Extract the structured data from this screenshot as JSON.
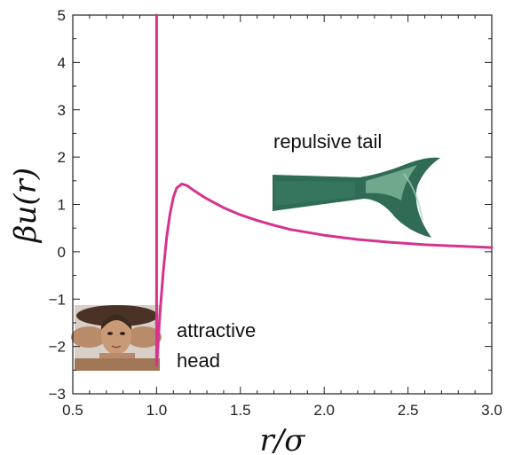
{
  "chart_data": {
    "type": "line",
    "xlabel": "r/σ",
    "ylabel": "βu(r)",
    "xlim": [
      0.5,
      3.0
    ],
    "ylim": [
      -3,
      5
    ],
    "x_ticks": [
      "0.5",
      "1.0",
      "1.5",
      "2.0",
      "2.5",
      "3.0"
    ],
    "y_ticks": [
      "−3",
      "−2",
      "−1",
      "0",
      "1",
      "2",
      "3",
      "4",
      "5"
    ],
    "grid": false,
    "series": [
      {
        "color": "#d6338f",
        "x": [
          1.0,
          1.0,
          1.02,
          1.04,
          1.06,
          1.08,
          1.1,
          1.12,
          1.15,
          1.18,
          1.2,
          1.25,
          1.3,
          1.4,
          1.5,
          1.6,
          1.7,
          1.8,
          2.0,
          2.2,
          2.4,
          2.6,
          2.8,
          3.0
        ],
        "y": [
          5.0,
          -2.4,
          -1.3,
          -0.4,
          0.3,
          0.8,
          1.15,
          1.35,
          1.43,
          1.4,
          1.35,
          1.23,
          1.12,
          0.93,
          0.78,
          0.66,
          0.56,
          0.47,
          0.35,
          0.26,
          0.2,
          0.15,
          0.12,
          0.09
        ]
      }
    ],
    "annotations": [
      {
        "text": "repulsive tail",
        "image": "mermaid-tail"
      },
      {
        "text": "attractive\nhead",
        "image": "mermaid-head"
      }
    ]
  },
  "annotation_text": {
    "repulsive": "repulsive tail",
    "attractive_line1": "attractive",
    "attractive_line2": "head"
  },
  "colors": {
    "curve": "#d6338f",
    "tail_dark": "#2f6b55",
    "tail_light": "#7fb89a",
    "skin": "#c99a76",
    "hair": "#4a3326"
  }
}
